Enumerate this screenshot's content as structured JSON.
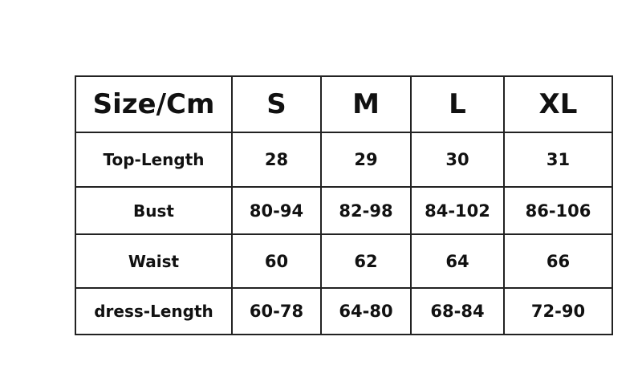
{
  "table": {
    "headers": [
      "Size/Cm",
      "S",
      "M",
      "L",
      "XL"
    ],
    "rows": [
      [
        "Top-Length",
        "28",
        "29",
        "30",
        "31"
      ],
      [
        "Bust",
        "80-94",
        "82-98",
        "84-102",
        "86-106"
      ],
      [
        "Waist",
        "60",
        "62",
        "64",
        "66"
      ],
      [
        "dress-Length",
        "60-78",
        "64-80",
        "68-84",
        "72-90"
      ]
    ]
  }
}
